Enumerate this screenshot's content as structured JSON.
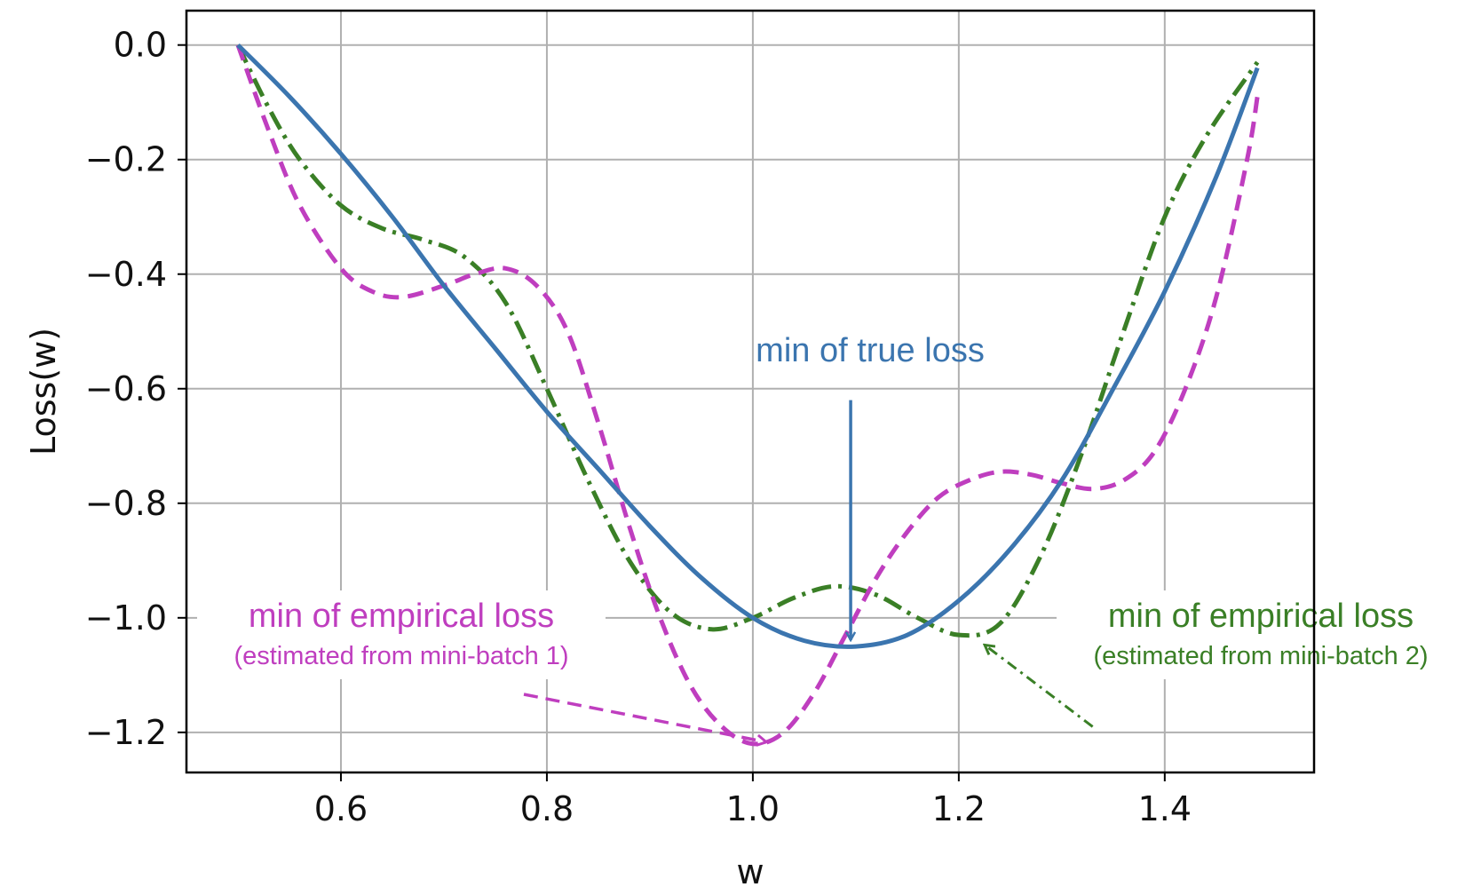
{
  "chart_data": {
    "type": "line",
    "xlabel": "w",
    "ylabel": "Loss(w)",
    "xlim": [
      0.45,
      1.545
    ],
    "ylim": [
      -1.27,
      0.06
    ],
    "xticks": [
      0.6,
      0.8,
      1.0,
      1.2,
      1.4
    ],
    "xtick_labels": [
      "0.6",
      "0.8",
      "1.0",
      "1.2",
      "1.4"
    ],
    "yticks": [
      0.0,
      -0.2,
      -0.4,
      -0.6,
      -0.8,
      -1.0,
      -1.2
    ],
    "ytick_labels": [
      "0.0",
      "−0.2",
      "−0.4",
      "−0.6",
      "−0.8",
      "−1.0",
      "−1.2"
    ],
    "grid": true,
    "series": [
      {
        "style": "solid",
        "color": "#3b75af",
        "x": [
          0.5,
          0.55,
          0.6,
          0.65,
          0.7,
          0.75,
          0.8,
          0.85,
          0.9,
          0.95,
          1.0,
          1.05,
          1.1,
          1.15,
          1.2,
          1.25,
          1.3,
          1.35,
          1.4,
          1.45,
          1.49
        ],
        "y": [
          0.0,
          -0.09,
          -0.19,
          -0.3,
          -0.42,
          -0.53,
          -0.64,
          -0.74,
          -0.84,
          -0.93,
          -1.0,
          -1.04,
          -1.05,
          -1.03,
          -0.97,
          -0.88,
          -0.76,
          -0.6,
          -0.43,
          -0.23,
          -0.04
        ]
      },
      {
        "style": "dashed",
        "color": "#bf3ebf",
        "x": [
          0.5,
          0.53,
          0.56,
          0.6,
          0.63,
          0.66,
          0.7,
          0.73,
          0.76,
          0.79,
          0.82,
          0.85,
          0.88,
          0.91,
          0.94,
          0.97,
          1.0,
          1.03,
          1.06,
          1.09,
          1.12,
          1.15,
          1.18,
          1.21,
          1.24,
          1.27,
          1.3,
          1.33,
          1.36,
          1.39,
          1.42,
          1.45,
          1.48,
          1.49
        ],
        "y": [
          0.0,
          -0.15,
          -0.28,
          -0.39,
          -0.43,
          -0.44,
          -0.42,
          -0.4,
          -0.39,
          -0.42,
          -0.5,
          -0.66,
          -0.84,
          -1.0,
          -1.12,
          -1.19,
          -1.22,
          -1.2,
          -1.13,
          -1.03,
          -0.93,
          -0.85,
          -0.79,
          -0.76,
          -0.745,
          -0.75,
          -0.765,
          -0.775,
          -0.76,
          -0.71,
          -0.6,
          -0.44,
          -0.2,
          -0.09
        ]
      },
      {
        "style": "dashdot",
        "color": "#3a7f26",
        "x": [
          0.5,
          0.53,
          0.56,
          0.6,
          0.64,
          0.68,
          0.72,
          0.76,
          0.8,
          0.84,
          0.88,
          0.92,
          0.96,
          1.0,
          1.04,
          1.08,
          1.12,
          1.16,
          1.2,
          1.24,
          1.28,
          1.32,
          1.36,
          1.4,
          1.44,
          1.49
        ],
        "y": [
          0.0,
          -0.11,
          -0.2,
          -0.28,
          -0.32,
          -0.34,
          -0.37,
          -0.45,
          -0.6,
          -0.76,
          -0.9,
          -0.99,
          -1.02,
          -1.0,
          -0.965,
          -0.945,
          -0.96,
          -1.0,
          -1.03,
          -1.01,
          -0.89,
          -0.71,
          -0.5,
          -0.3,
          -0.16,
          -0.03
        ]
      }
    ],
    "annotations": [
      {
        "text": "min of true loss",
        "color": "#3b75af",
        "arrow_to": [
          1.095,
          -1.045
        ],
        "arrow_from": [
          1.095,
          -0.62
        ]
      },
      {
        "text": "min of empirical loss",
        "subtext": "(estimated from mini-batch 1)",
        "color": "#bf3ebf",
        "arrow_to": [
          1.02,
          -1.22
        ],
        "arrow_from": [
          0.74,
          -1.14
        ]
      },
      {
        "text": "min of empirical loss",
        "subtext": "(estimated from mini-batch 2)",
        "color": "#3a7f26",
        "arrow_to": [
          1.22,
          -1.035
        ],
        "arrow_from": [
          1.33,
          -1.19
        ]
      }
    ]
  }
}
